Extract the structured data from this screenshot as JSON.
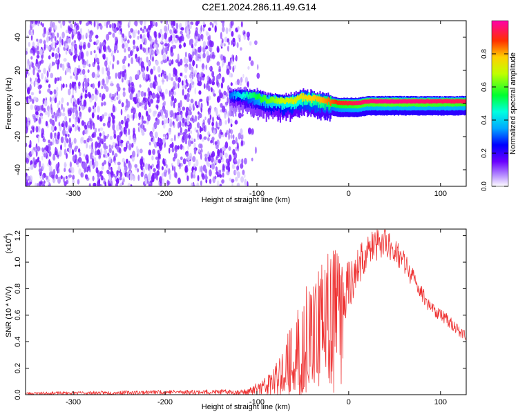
{
  "title": "C2E1.2024.286.11.49.G14",
  "chart_data": [
    {
      "type": "heatmap",
      "name": "spectrogram",
      "xlabel": "Height of straight line (km)",
      "ylabel": "Frequency (Hz)",
      "xlim": [
        -352,
        128
      ],
      "ylim": [
        -50,
        50
      ],
      "xticks": [
        -300,
        -200,
        -100,
        0,
        100
      ],
      "xtick_labels": [
        "-300",
        "-200",
        "-100",
        "0",
        "100"
      ],
      "yticks": [
        -40,
        -20,
        0,
        20,
        40
      ],
      "ytick_labels": [
        "-40",
        "-20",
        "0",
        "20",
        "40"
      ],
      "noise_region_km": [
        -352,
        -98
      ],
      "signal_track": {
        "x": [
          -130,
          -115,
          -100,
          -90,
          -80,
          -70,
          -60,
          -50,
          -40,
          -30,
          -20,
          -10,
          0,
          10,
          20,
          30,
          40,
          50,
          60,
          70,
          80,
          90,
          100,
          110,
          120,
          128
        ],
        "y": [
          6,
          6,
          5,
          3,
          3,
          2,
          3,
          5,
          4,
          3,
          2,
          1,
          1,
          1,
          2,
          2,
          2,
          2,
          2,
          2,
          2,
          2,
          2,
          2,
          2,
          2
        ],
        "amplitude": [
          0.3,
          0.45,
          0.55,
          0.6,
          0.65,
          0.7,
          0.72,
          0.75,
          0.78,
          0.8,
          0.85,
          0.9,
          0.92,
          0.95,
          0.96,
          0.97,
          0.98,
          0.98,
          0.97,
          0.97,
          0.96,
          0.96,
          0.95,
          0.95,
          0.94,
          0.94
        ]
      },
      "colorbar": {
        "label": "Normalized spectral amplitude",
        "range": [
          0,
          1
        ],
        "ticks": [
          0.0,
          0.2,
          0.4,
          0.6,
          0.8
        ],
        "tick_labels": [
          "0.0",
          "0.2",
          "0.4",
          "0.6",
          "0.8"
        ]
      }
    },
    {
      "type": "line",
      "name": "snr",
      "xlabel": "Height of straight line (km)",
      "ylabel": "SNR (10 * V/V)",
      "scale_label": "(x10",
      "scale_exp": "4",
      "scale_close": ")",
      "xlim": [
        -352,
        128
      ],
      "ylim": [
        0,
        1.25
      ],
      "xticks": [
        -300,
        -200,
        -100,
        0,
        100
      ],
      "xtick_labels": [
        "-300",
        "-200",
        "-100",
        "0",
        "100"
      ],
      "yticks": [
        0.0,
        0.2,
        0.4,
        0.6,
        0.8,
        1.0,
        1.2
      ],
      "ytick_labels": [
        "0.0",
        "0.2",
        "0.4",
        "0.6",
        "0.8",
        "1.0",
        "1.2"
      ],
      "color": "#ee3333",
      "envelope": {
        "x": [
          -352,
          -250,
          -200,
          -150,
          -110,
          -100,
          -90,
          -80,
          -75,
          -70,
          -60,
          -50,
          -40,
          -30,
          -20,
          -10,
          0,
          10,
          20,
          30,
          40,
          50,
          60,
          70,
          80,
          90,
          100,
          110,
          120,
          128
        ],
        "y": [
          0.01,
          0.015,
          0.02,
          0.02,
          0.02,
          0.04,
          0.06,
          0.1,
          0.15,
          0.2,
          0.25,
          0.38,
          0.5,
          0.6,
          0.68,
          0.75,
          0.82,
          0.95,
          1.08,
          1.13,
          1.15,
          1.1,
          1.0,
          0.88,
          0.76,
          0.66,
          0.6,
          0.55,
          0.48,
          0.44
        ]
      },
      "noise_amplitude": {
        "x": [
          -352,
          -110,
          -80,
          -60,
          -40,
          -20,
          -10,
          0,
          20,
          40,
          60,
          80,
          100,
          128
        ],
        "y": [
          0.01,
          0.02,
          0.12,
          0.3,
          0.45,
          0.5,
          0.35,
          0.18,
          0.14,
          0.12,
          0.1,
          0.06,
          0.05,
          0.04
        ]
      }
    }
  ]
}
